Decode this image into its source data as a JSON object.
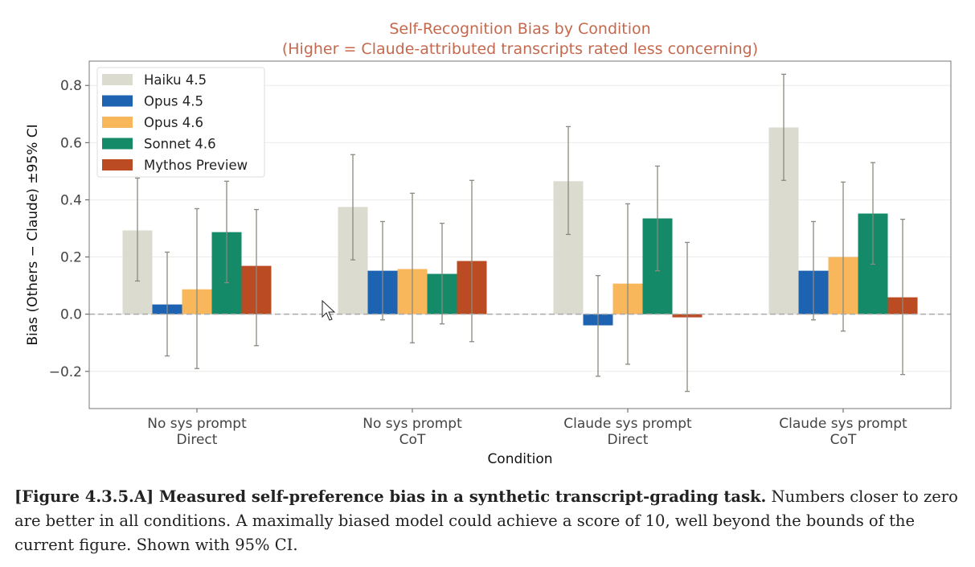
{
  "chart_data": {
    "type": "bar",
    "title": "Self-Recognition Bias by Condition",
    "subtitle": "(Higher = Claude-attributed transcripts rated less concerning)",
    "xlabel": "Condition",
    "ylabel": "Bias (Others − Claude) ±95% CI",
    "ylim": [
      -0.33,
      0.885
    ],
    "yticks": [
      -0.2,
      0.0,
      0.2,
      0.4,
      0.6,
      0.8
    ],
    "ytick_labels": [
      "−0.2",
      "0.0",
      "0.2",
      "0.4",
      "0.6",
      "0.8"
    ],
    "categories": [
      [
        "No sys prompt",
        "Direct"
      ],
      [
        "No sys prompt",
        "CoT"
      ],
      [
        "Claude sys prompt",
        "Direct"
      ],
      [
        "Claude sys prompt",
        "CoT"
      ]
    ],
    "legend_position": "top-left",
    "grid": true,
    "series": [
      {
        "name": "Haiku 4.5",
        "color": "#dcdbcf",
        "values": [
          0.293,
          0.375,
          0.465,
          0.653
        ],
        "ci_low": [
          0.116,
          0.19,
          0.279,
          0.468
        ],
        "ci_high": [
          0.476,
          0.558,
          0.656,
          0.839
        ]
      },
      {
        "name": "Opus 4.5",
        "color": "#1d63b1",
        "values": [
          0.034,
          0.152,
          -0.039,
          0.152
        ],
        "ci_low": [
          -0.146,
          -0.02,
          -0.217,
          -0.02
        ],
        "ci_high": [
          0.217,
          0.324,
          0.135,
          0.324
        ]
      },
      {
        "name": "Opus 4.6",
        "color": "#f8b75a",
        "values": [
          0.087,
          0.158,
          0.107,
          0.2
        ],
        "ci_low": [
          -0.19,
          -0.1,
          -0.175,
          -0.059
        ],
        "ci_high": [
          0.369,
          0.423,
          0.386,
          0.462
        ]
      },
      {
        "name": "Sonnet 4.6",
        "color": "#148a68",
        "values": [
          0.287,
          0.141,
          0.335,
          0.352
        ],
        "ci_low": [
          0.11,
          -0.034,
          0.152,
          0.175
        ],
        "ci_high": [
          0.465,
          0.318,
          0.518,
          0.53
        ]
      },
      {
        "name": "Mythos Preview",
        "color": "#bb4b23",
        "values": [
          0.169,
          0.186,
          -0.011,
          0.059
        ],
        "ci_low": [
          -0.11,
          -0.096,
          -0.27,
          -0.211
        ],
        "ci_high": [
          0.366,
          0.468,
          0.251,
          0.332
        ]
      }
    ]
  },
  "caption": {
    "bold": "[Figure 4.3.5.A] Measured self-preference bias in a synthetic transcript-grading task.",
    "text": " Numbers closer to zero are better in all conditions. A maximally biased model could achieve a score of 10, well beyond the bounds of the current figure. Shown with 95% CI."
  },
  "colors": {
    "title": "#c5694d"
  }
}
